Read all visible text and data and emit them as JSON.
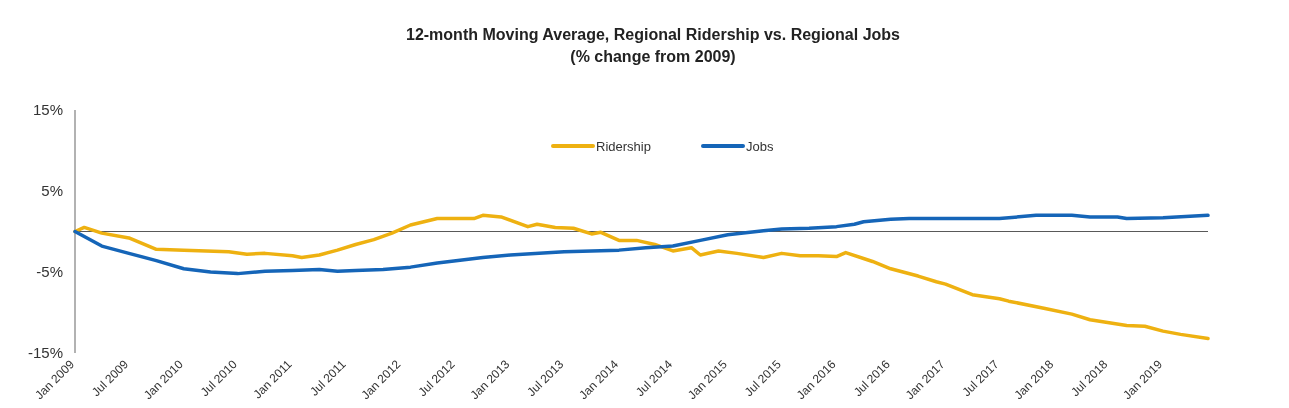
{
  "chart_data": {
    "type": "line",
    "title": "12-month Moving Average, Regional Ridership vs. Regional Jobs",
    "subtitle": "(% change from 2009)",
    "xlim": [
      "2009-01",
      "2019-06"
    ],
    "xticks": [
      {
        "value": "2009-01",
        "label": "Jan 2009"
      },
      {
        "value": "2009-07",
        "label": "Jul 2009"
      },
      {
        "value": "2010-01",
        "label": "Jan 2010"
      },
      {
        "value": "2010-07",
        "label": "Jul 2010"
      },
      {
        "value": "2011-01",
        "label": "Jan 2011"
      },
      {
        "value": "2011-07",
        "label": "Jul 2011"
      },
      {
        "value": "2012-01",
        "label": "Jan 2012"
      },
      {
        "value": "2012-07",
        "label": "Jul 2012"
      },
      {
        "value": "2013-01",
        "label": "Jan 2013"
      },
      {
        "value": "2013-07",
        "label": "Jul 2013"
      },
      {
        "value": "2014-01",
        "label": "Jan 2014"
      },
      {
        "value": "2014-07",
        "label": "Jul 2014"
      },
      {
        "value": "2015-01",
        "label": "Jan 2015"
      },
      {
        "value": "2015-07",
        "label": "Jul 2015"
      },
      {
        "value": "2016-01",
        "label": "Jan 2016"
      },
      {
        "value": "2016-07",
        "label": "Jul 2016"
      },
      {
        "value": "2017-01",
        "label": "Jan 2017"
      },
      {
        "value": "2017-07",
        "label": "Jul 2017"
      },
      {
        "value": "2018-01",
        "label": "Jan 2018"
      },
      {
        "value": "2018-07",
        "label": "Jul 2018"
      },
      {
        "value": "2019-01",
        "label": "Jan 2019"
      }
    ],
    "ylim": [
      -15,
      15
    ],
    "yticks": [
      {
        "value": -15,
        "label": "-15%"
      },
      {
        "value": -5,
        "label": "-5%"
      },
      {
        "value": 5,
        "label": "5%"
      },
      {
        "value": 15,
        "label": "15%"
      }
    ],
    "grid": false,
    "legend": "top",
    "line_style": "solid",
    "ref_lines": [
      {
        "axis": "y",
        "value": 0,
        "color": "#595959"
      }
    ],
    "series": [
      {
        "name": "Ridership",
        "color": "#eeb111",
        "x": [
          "2009-01",
          "2009-02",
          "2009-04",
          "2009-07",
          "2009-10",
          "2010-01",
          "2010-06",
          "2010-08",
          "2010-10",
          "2011-01",
          "2011-02",
          "2011-04",
          "2011-06",
          "2011-08",
          "2011-10",
          "2011-12",
          "2012-02",
          "2012-05",
          "2012-07",
          "2012-09",
          "2012-10",
          "2012-12",
          "2013-03",
          "2013-04",
          "2013-06",
          "2013-08",
          "2013-10",
          "2013-11",
          "2014-01",
          "2014-03",
          "2014-05",
          "2014-07",
          "2014-09",
          "2014-10",
          "2014-12",
          "2015-02",
          "2015-05",
          "2015-07",
          "2015-09",
          "2015-11",
          "2016-01",
          "2016-02",
          "2016-05",
          "2016-07",
          "2016-10",
          "2016-12",
          "2017-01",
          "2017-04",
          "2017-07",
          "2017-08",
          "2017-12",
          "2018-03",
          "2018-05",
          "2018-09",
          "2018-11",
          "2019-01",
          "2019-03",
          "2019-06"
        ],
        "values": [
          0,
          0.5,
          -0.2,
          -0.8,
          -2.2,
          -2.3,
          -2.5,
          -2.8,
          -2.7,
          -3.0,
          -3.2,
          -2.9,
          -2.3,
          -1.6,
          -1.0,
          -0.2,
          0.8,
          1.6,
          1.6,
          1.6,
          2.0,
          1.8,
          0.6,
          0.9,
          0.5,
          0.4,
          -0.3,
          -0.1,
          -1.1,
          -1.1,
          -1.6,
          -2.4,
          -2.0,
          -2.9,
          -2.4,
          -2.7,
          -3.2,
          -2.7,
          -3.0,
          -3.0,
          -3.1,
          -2.6,
          -3.7,
          -4.6,
          -5.5,
          -6.2,
          -6.5,
          -7.8,
          -8.3,
          -8.6,
          -9.5,
          -10.2,
          -10.9,
          -11.6,
          -11.7,
          -12.3,
          -12.7,
          -13.2
        ]
      },
      {
        "name": "Jobs",
        "color": "#1565b8",
        "x": [
          "2009-01",
          "2009-04",
          "2009-07",
          "2009-10",
          "2010-01",
          "2010-04",
          "2010-07",
          "2010-10",
          "2011-01",
          "2011-04",
          "2011-06",
          "2011-08",
          "2011-11",
          "2012-02",
          "2012-05",
          "2012-10",
          "2013-01",
          "2013-07",
          "2014-01",
          "2014-04",
          "2014-07",
          "2014-10",
          "2015-01",
          "2015-05",
          "2015-07",
          "2015-10",
          "2016-01",
          "2016-03",
          "2016-04",
          "2016-07",
          "2016-09",
          "2017-01",
          "2017-07",
          "2017-11",
          "2018-03",
          "2018-05",
          "2018-08",
          "2018-09",
          "2019-01",
          "2019-06"
        ],
        "values": [
          0,
          -1.8,
          -2.7,
          -3.6,
          -4.6,
          -5.0,
          -5.2,
          -4.9,
          -4.8,
          -4.7,
          -4.9,
          -4.8,
          -4.7,
          -4.4,
          -3.9,
          -3.2,
          -2.9,
          -2.5,
          -2.3,
          -2.0,
          -1.8,
          -1.1,
          -0.4,
          0.1,
          0.3,
          0.4,
          0.6,
          0.9,
          1.2,
          1.5,
          1.6,
          1.6,
          1.6,
          2.0,
          2.0,
          1.8,
          1.8,
          1.6,
          1.7,
          2.0
        ]
      }
    ]
  }
}
